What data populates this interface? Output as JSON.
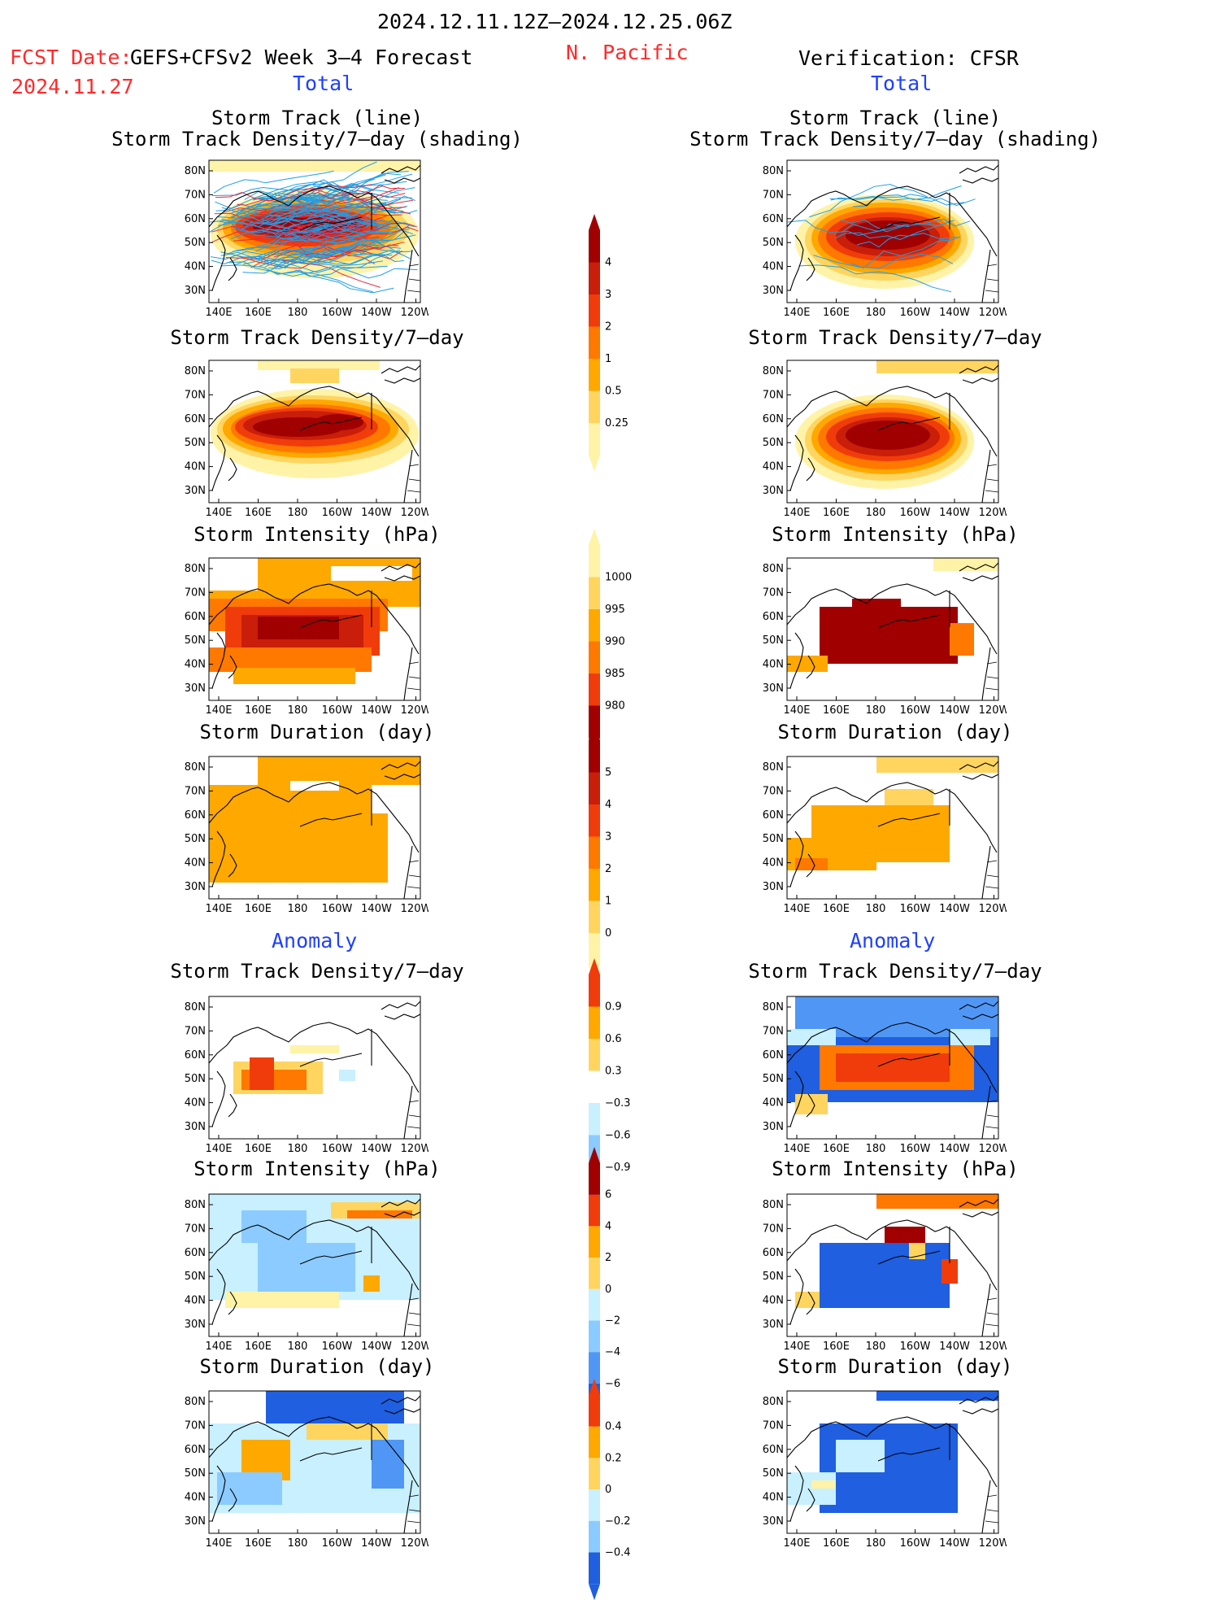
{
  "header": {
    "date_range": "2024.12.11.12Z–2024.12.25.06Z",
    "fcst_date_label": "FCST Date:",
    "fcst_date": "2024.11.27",
    "model": "GEFS+CFSv2 Week 3–4 Forecast",
    "region": "N. Pacific",
    "verification": "Verification: CFSR"
  },
  "sections": {
    "total_left": "Total",
    "total_right": "Total",
    "anomaly_left": "Anomaly",
    "anomaly_right": "Anomaly"
  },
  "panel_titles": {
    "p1_line1": "Storm Track (line)",
    "p1_line2": "Storm Track Density/7–day (shading)",
    "p2": "Storm Track Density/7–day",
    "p3": "Storm Intensity (hPa)",
    "p4": "Storm Duration (day)",
    "p5": "Storm Track Density/7–day",
    "p6": "Storm Intensity (hPa)",
    "p7": "Storm Duration (day)"
  },
  "axes": {
    "lat_ticks": [
      "80N",
      "70N",
      "60N",
      "50N",
      "40N",
      "30N"
    ],
    "lon_ticks": [
      "140E",
      "160E",
      "180",
      "160W",
      "140W",
      "120W"
    ]
  },
  "colorbars": {
    "density_total": [
      "4",
      "3",
      "2",
      "1",
      "0.5",
      "0.25"
    ],
    "intensity_total": [
      "1000",
      "995",
      "990",
      "985",
      "980"
    ],
    "duration_total": [
      "5",
      "4",
      "3",
      "2",
      "1",
      "0"
    ],
    "density_anom": [
      "0.9",
      "0.6",
      "0.3",
      "−0.3",
      "−0.6",
      "−0.9"
    ],
    "intensity_anom": [
      "6",
      "4",
      "2",
      "0",
      "−2",
      "−4",
      "−6"
    ],
    "duration_anom": [
      "0.4",
      "0.2",
      "0",
      "−0.2",
      "−0.4"
    ]
  },
  "colors": {
    "warm": [
      "#fff3a8",
      "#ffd560",
      "#ffa800",
      "#ff7800",
      "#f03c0a",
      "#c81e0a",
      "#a00000"
    ],
    "cool": [
      "#c8f0ff",
      "#8ccbff",
      "#5097f5",
      "#1f5fe0"
    ],
    "track_line": "#1e9ee8",
    "track_line_red": "#e8283c"
  }
}
